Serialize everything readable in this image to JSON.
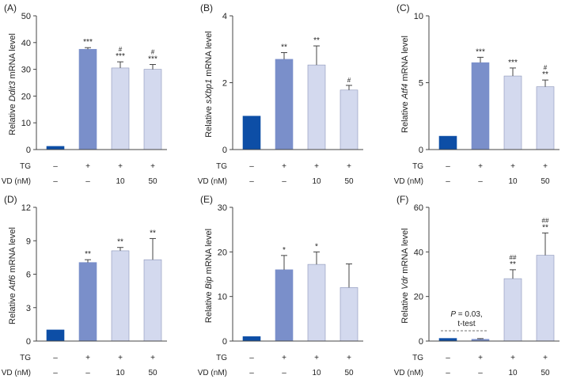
{
  "colors": {
    "dark": "#0d4ea6",
    "medium": "#7a8fca",
    "light": "#d3d9ee",
    "axis": "#444444",
    "text": "#222222",
    "edge": "#8a94b8"
  },
  "conditions": {
    "tg_label": "TG",
    "vd_label": "VD (nM)",
    "tg": [
      "–",
      "+",
      "+",
      "+"
    ],
    "vd": [
      "–",
      "–",
      "10",
      "50"
    ]
  },
  "chart_data": [
    {
      "type": "bar",
      "panel": "(A)",
      "ylabel_prefix": "Relative ",
      "ylabel_gene": "Ddit3",
      "ylabel_suffix": " mRNA level",
      "ylim": [
        0,
        50
      ],
      "yticks": [
        0,
        10,
        20,
        30,
        40,
        50
      ],
      "values": [
        1.2,
        37.5,
        30.5,
        30.0
      ],
      "errors": [
        0,
        0.6,
        2.3,
        1.8
      ],
      "sig_lines": [
        [],
        [
          "***"
        ],
        [
          "#",
          "***"
        ],
        [
          "#",
          "***"
        ]
      ],
      "grid": false
    },
    {
      "type": "bar",
      "panel": "(B)",
      "ylabel_prefix": "Relative ",
      "ylabel_gene": "sXbp1",
      "ylabel_suffix": " mRNA level",
      "ylim": [
        0,
        4
      ],
      "yticks": [
        0,
        2,
        4
      ],
      "values": [
        1.0,
        2.7,
        2.53,
        1.78
      ],
      "errors": [
        0,
        0.2,
        0.57,
        0.14
      ],
      "sig_lines": [
        [],
        [
          "**"
        ],
        [
          "**"
        ],
        [
          "#"
        ]
      ],
      "grid": false
    },
    {
      "type": "bar",
      "panel": "(C)",
      "ylabel_prefix": "Relative ",
      "ylabel_gene": "Atf4",
      "ylabel_suffix": " mRNA level",
      "ylim": [
        0,
        10
      ],
      "yticks": [
        0,
        5,
        10
      ],
      "values": [
        1.0,
        6.5,
        5.5,
        4.7
      ],
      "errors": [
        0,
        0.4,
        0.6,
        0.5
      ],
      "sig_lines": [
        [],
        [
          "***"
        ],
        [
          "***"
        ],
        [
          "#",
          "**"
        ]
      ],
      "grid": false
    },
    {
      "type": "bar",
      "panel": "(D)",
      "ylabel_prefix": "Relative ",
      "ylabel_gene": "Atf6",
      "ylabel_suffix": " mRNA level",
      "ylim": [
        0,
        12
      ],
      "yticks": [
        0,
        3,
        6,
        9,
        12
      ],
      "values": [
        1.0,
        7.05,
        8.1,
        7.3
      ],
      "errors": [
        0,
        0.25,
        0.3,
        1.9
      ],
      "sig_lines": [
        [],
        [
          "**"
        ],
        [
          "**"
        ],
        [
          "**"
        ]
      ],
      "grid": false
    },
    {
      "type": "bar",
      "panel": "(E)",
      "ylabel_prefix": "Relative ",
      "ylabel_gene": "Bip",
      "ylabel_suffix": " mRNA level",
      "ylim": [
        0,
        30
      ],
      "yticks": [
        0,
        10,
        20,
        30
      ],
      "values": [
        1.0,
        16.0,
        17.2,
        12.0
      ],
      "errors": [
        0,
        3.2,
        2.8,
        5.3
      ],
      "sig_lines": [
        [],
        [
          "*"
        ],
        [
          "*"
        ],
        []
      ],
      "grid": false
    },
    {
      "type": "bar",
      "panel": "(F)",
      "ylabel_prefix": "Relative ",
      "ylabel_gene": "Vdr",
      "ylabel_suffix": " mRNA level",
      "ylim": [
        0,
        60
      ],
      "yticks": [
        0,
        20,
        40,
        60
      ],
      "values": [
        1.2,
        0.8,
        28.0,
        38.5
      ],
      "errors": [
        0,
        0.3,
        4.0,
        10.0
      ],
      "sig_lines": [
        [],
        [],
        [
          "##",
          "**"
        ],
        [
          "##",
          "**"
        ]
      ],
      "grid": false,
      "annotation": {
        "p_italic": "P",
        "p_text": " = 0.03,",
        "test_text": "t-test"
      }
    }
  ]
}
